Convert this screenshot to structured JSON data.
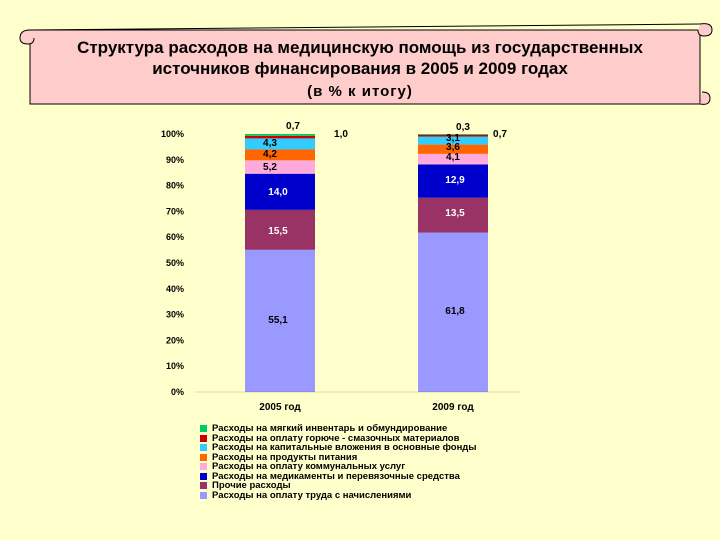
{
  "title": {
    "line1": "Структура расходов на медицинскую помощь из государственных",
    "line2": "источников финансирования в 2005 и 2009 годах",
    "line3": "(в % к итогу)"
  },
  "chart_data": {
    "type": "bar",
    "stacked": true,
    "categories": [
      "2005 год",
      "2009 год"
    ],
    "ylim": [
      0,
      100
    ],
    "yticks": [
      "0%",
      "10%",
      "20%",
      "30%",
      "40%",
      "50%",
      "60%",
      "70%",
      "80%",
      "90%",
      "100%"
    ],
    "series": [
      {
        "name": "Расходы на оплату труда с начислениями",
        "color": "#9999ff",
        "values": [
          55.1,
          61.8
        ],
        "labels": [
          "55,1",
          "61,8"
        ]
      },
      {
        "name": "Прочие расходы",
        "color": "#993366",
        "values": [
          15.5,
          13.5
        ],
        "labels": [
          "15,5",
          "13,5"
        ]
      },
      {
        "name": "Расходы на медикаменты и перевязочные средства",
        "color": "#0000cc",
        "values": [
          14.0,
          12.9
        ],
        "labels": [
          "14,0",
          "12,9"
        ]
      },
      {
        "name": "Расходы на оплату коммунальных услуг",
        "color": "#ffaadd",
        "values": [
          5.2,
          4.1
        ],
        "labels": [
          "5,2",
          "4,1"
        ]
      },
      {
        "name": "Расходы на продукты питания",
        "color": "#ff6600",
        "values": [
          4.2,
          3.6
        ],
        "labels": [
          "4,2",
          "3,6"
        ]
      },
      {
        "name": "Расходы на капитальные вложения в основные фонды",
        "color": "#33ccff",
        "values": [
          4.3,
          3.1
        ],
        "labels": [
          "4,3",
          "3,1"
        ]
      },
      {
        "name": "Расходы на оплату горюче - смазочных материалов",
        "color": "#cc0000",
        "values": [
          1.0,
          0.7
        ],
        "labels": [
          "1,0",
          "0,7"
        ]
      },
      {
        "name": "Расходы на мягкий инвентарь и обмундирование",
        "color": "#00cc66",
        "values": [
          0.7,
          0.3
        ],
        "labels": [
          "0,7",
          "0,3"
        ]
      }
    ],
    "legend_order": [
      "Расходы на мягкий инвентарь и обмундирование",
      "Расходы на оплату горюче - смазочных материалов",
      "Расходы на капитальные вложения в основные фонды",
      "Расходы на продукты питания",
      "Расходы на оплату коммунальных услуг",
      "Расходы на  медикаменты и перевязочные средства",
      "Прочие расходы",
      "Расходы на оплату труда с начислениями"
    ],
    "legend_colors": [
      "#00cc66",
      "#cc0000",
      "#33ccff",
      "#ff6600",
      "#ffaadd",
      "#0000cc",
      "#993366",
      "#9999ff"
    ],
    "legend_position": "bottom",
    "grid": false
  }
}
